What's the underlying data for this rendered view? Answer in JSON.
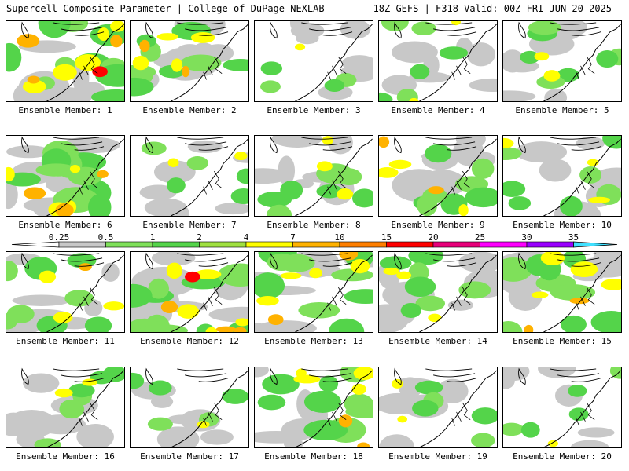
{
  "header": {
    "title": "Supercell Composite Parameter | College of DuPage NEXLAB",
    "run_info": "18Z GEFS | F318 Valid: 00Z FRI JUN 20 2025"
  },
  "legend": {
    "ticks": [
      "0.25",
      "0.5",
      "1",
      "2",
      "4",
      "7",
      "10",
      "15",
      "20",
      "25",
      "30",
      "35"
    ],
    "colors": [
      "#c8c8c8",
      "#7fe05a",
      "#54d44a",
      "#a0e040",
      "#ffff00",
      "#ffb200",
      "#ff7f00",
      "#ff0000",
      "#e8007a",
      "#ff00ff",
      "#9a00ff",
      "#b070e0",
      "#40e0ff"
    ]
  },
  "members": [
    {
      "label": "Ensemble Member: 1",
      "intensity": 0.95
    },
    {
      "label": "Ensemble Member: 2",
      "intensity": 0.7
    },
    {
      "label": "Ensemble Member: 3",
      "intensity": 0.1
    },
    {
      "label": "Ensemble Member: 4",
      "intensity": 0.35
    },
    {
      "label": "Ensemble Member: 5",
      "intensity": 0.45
    },
    {
      "label": "Ensemble Member: 6",
      "intensity": 0.85
    },
    {
      "label": "Ensemble Member: 7",
      "intensity": 0.3
    },
    {
      "label": "Ensemble Member: 8",
      "intensity": 0.55
    },
    {
      "label": "Ensemble Member: 9",
      "intensity": 0.65
    },
    {
      "label": "Ensemble Member: 10",
      "intensity": 0.55
    },
    {
      "label": "Ensemble Member: 11",
      "intensity": 0.6
    },
    {
      "label": "Ensemble Member: 12",
      "intensity": 0.9
    },
    {
      "label": "Ensemble Member: 13",
      "intensity": 0.75
    },
    {
      "label": "Ensemble Member: 14",
      "intensity": 0.5
    },
    {
      "label": "Ensemble Member: 15",
      "intensity": 0.8
    },
    {
      "label": "Ensemble Member: 16",
      "intensity": 0.4
    },
    {
      "label": "Ensemble Member: 17",
      "intensity": 0.25
    },
    {
      "label": "Ensemble Member: 18",
      "intensity": 0.75
    },
    {
      "label": "Ensemble Member: 19",
      "intensity": 0.3
    },
    {
      "label": "Ensemble Member: 20",
      "intensity": 0.2
    }
  ]
}
